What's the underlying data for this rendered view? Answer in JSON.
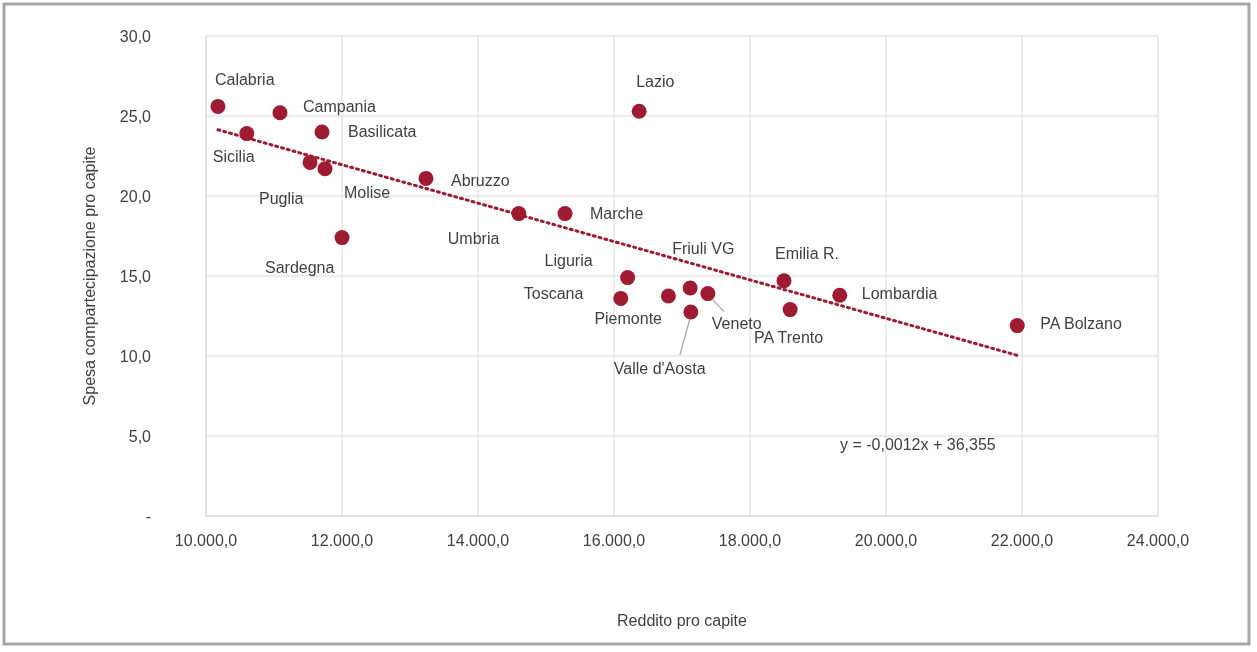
{
  "chart_data": {
    "type": "scatter",
    "xlabel": "Reddito pro capite",
    "ylabel": "Spesa compartecipazione pro capite",
    "xlim": [
      10000,
      24000
    ],
    "xticks": [
      {
        "value": 10000,
        "label": "10.000,0"
      },
      {
        "value": 12000,
        "label": "12.000,0"
      },
      {
        "value": 14000,
        "label": "14.000,0"
      },
      {
        "value": 16000,
        "label": "16.000,0"
      },
      {
        "value": 18000,
        "label": "18.000,0"
      },
      {
        "value": 20000,
        "label": "20.000,0"
      },
      {
        "value": 22000,
        "label": "22.000,0"
      },
      {
        "value": 24000,
        "label": "24.000,0"
      }
    ],
    "ylim": [
      0,
      30
    ],
    "yticks": [
      {
        "value": 0,
        "label": "-"
      },
      {
        "value": 5,
        "label": "5,0"
      },
      {
        "value": 10,
        "label": "10,0"
      },
      {
        "value": 15,
        "label": "15,0"
      },
      {
        "value": 20,
        "label": "20,0"
      },
      {
        "value": 25,
        "label": "25,0"
      },
      {
        "value": 30,
        "label": "30,0"
      }
    ],
    "grid": true,
    "marker": "circle",
    "series": [
      {
        "color": "#9e1b32",
        "x": [
          10176,
          11088,
          10600,
          11706,
          11530,
          11750,
          13235,
          12000,
          14600,
          15280,
          16370,
          16200,
          16100,
          16800,
          17120,
          17380,
          17130,
          18500,
          18590,
          19320,
          21930
        ],
        "values": [
          25.6,
          25.2,
          23.9,
          24.0,
          22.1,
          21.7,
          21.1,
          17.4,
          18.9,
          18.9,
          25.3,
          14.9,
          13.6,
          13.75,
          14.25,
          13.9,
          12.75,
          14.7,
          12.9,
          13.8,
          11.9
        ]
      },
      {
        "type": "line",
        "color": "#9e1b32",
        "line_style": "dotted",
        "marker": "none",
        "x": [
          10176,
          21930
        ],
        "values": [
          24.14,
          10.04
        ]
      }
    ],
    "annotations": [
      {
        "text": "Calabria",
        "x": 10176,
        "y": 25.6
      },
      {
        "text": "Campania",
        "x": 11088,
        "y": 25.2
      },
      {
        "text": "Sicilia",
        "x": 10600,
        "y": 23.9
      },
      {
        "text": "Basilicata",
        "x": 11706,
        "y": 24.0
      },
      {
        "text": "Puglia",
        "x": 11530,
        "y": 22.1
      },
      {
        "text": "Molise",
        "x": 11750,
        "y": 21.7
      },
      {
        "text": "Abruzzo",
        "x": 13235,
        "y": 21.1
      },
      {
        "text": "Sardegna",
        "x": 12000,
        "y": 17.4
      },
      {
        "text": "Umbria",
        "x": 14600,
        "y": 18.9
      },
      {
        "text": "Marche",
        "x": 15280,
        "y": 18.9
      },
      {
        "text": "Lazio",
        "x": 16370,
        "y": 25.3
      },
      {
        "text": "Liguria",
        "x": 16200,
        "y": 14.9
      },
      {
        "text": "Toscana",
        "x": 16100,
        "y": 13.6
      },
      {
        "text": "Piemonte",
        "x": 16800,
        "y": 13.75
      },
      {
        "text": "Friuli VG",
        "x": 17120,
        "y": 14.25
      },
      {
        "text": "Veneto",
        "x": 17380,
        "y": 13.9
      },
      {
        "text": "Valle d'Aosta",
        "x": 17130,
        "y": 12.75
      },
      {
        "text": "Emilia R.",
        "x": 18500,
        "y": 14.7
      },
      {
        "text": "PA Trento",
        "x": 18590,
        "y": 12.9
      },
      {
        "text": "Lombardia",
        "x": 19320,
        "y": 13.8
      },
      {
        "text": "PA Bolzano",
        "x": 21930,
        "y": 11.9
      },
      "y = -0,0012x + 36,355"
    ]
  }
}
